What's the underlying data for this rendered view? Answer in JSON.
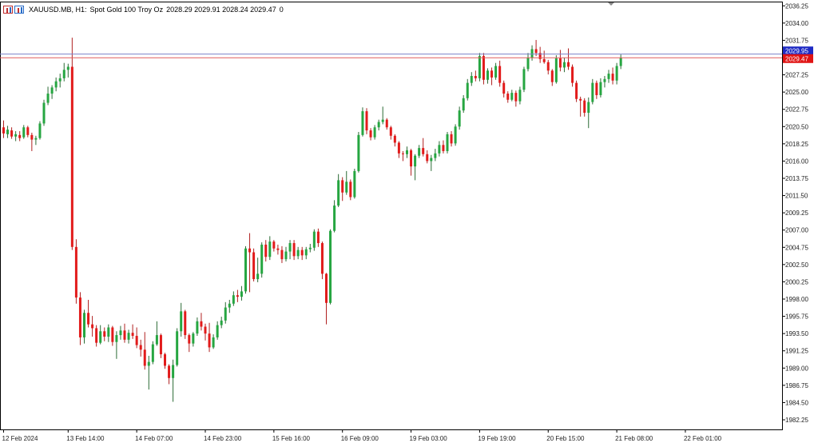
{
  "header": {
    "symbol": "XAUUSD.MB, H1:",
    "description": "Spot Gold 100 Troy Oz",
    "ohlc": "2028.29 2029.91 2028.24 2029.47",
    "volume": "0"
  },
  "price_labels": {
    "ask": "2029.95",
    "bid": "2029.47"
  },
  "colors": {
    "bull": "#26a641",
    "bear": "#e21b1b",
    "wick": "#3b3b3b",
    "ask_line": "#7b83c9",
    "bid_line": "#e05a5a",
    "bid_tag_bg": "#e01414",
    "ask_tag_bg": "#1f2bc4"
  },
  "chart_data": {
    "type": "candlestick",
    "symbol": "XAUUSD.MB",
    "timeframe": "H1",
    "ylim": [
      1981.0,
      2036.8
    ],
    "y_ticks": [
      "2036.25",
      "2034.00",
      "2031.75",
      "2029.50",
      "2027.25",
      "2025.00",
      "2022.75",
      "2020.50",
      "2018.25",
      "2016.00",
      "2013.75",
      "2011.50",
      "2009.25",
      "2007.00",
      "2004.75",
      "2002.50",
      "2000.25",
      "1998.00",
      "1995.75",
      "1993.50",
      "1991.25",
      "1989.00",
      "1986.75",
      "1984.50",
      "1982.25"
    ],
    "x_labels": [
      "12 Feb 2024",
      "13 Feb 14:00",
      "14 Feb 07:00",
      "14 Feb 23:00",
      "15 Feb 16:00",
      "16 Feb 09:00",
      "19 Feb 03:00",
      "19 Feb 19:00",
      "20 Feb 15:00",
      "21 Feb 08:00",
      "22 Feb 01:00"
    ],
    "x_label_bar_index": [
      0,
      16,
      33,
      50,
      67,
      84,
      101,
      118,
      135,
      152,
      169
    ],
    "grid": false,
    "candles": [
      {
        "o": 2020.4,
        "h": 2021.3,
        "l": 2019.0,
        "c": 2019.6
      },
      {
        "o": 2019.5,
        "h": 2020.6,
        "l": 2019.0,
        "c": 2020.1
      },
      {
        "o": 2020.0,
        "h": 2020.4,
        "l": 2018.9,
        "c": 2019.2
      },
      {
        "o": 2019.2,
        "h": 2019.9,
        "l": 2018.6,
        "c": 2019.5
      },
      {
        "o": 2019.4,
        "h": 2019.9,
        "l": 2018.6,
        "c": 2019.0
      },
      {
        "o": 2019.1,
        "h": 2020.7,
        "l": 2018.9,
        "c": 2020.4
      },
      {
        "o": 2020.4,
        "h": 2020.6,
        "l": 2019.1,
        "c": 2019.4
      },
      {
        "o": 2019.4,
        "h": 2019.7,
        "l": 2017.3,
        "c": 2018.8
      },
      {
        "o": 2018.8,
        "h": 2019.3,
        "l": 2018.1,
        "c": 2019.0
      },
      {
        "o": 2019.0,
        "h": 2021.2,
        "l": 2018.8,
        "c": 2020.9
      },
      {
        "o": 2020.9,
        "h": 2024.0,
        "l": 2020.6,
        "c": 2023.6
      },
      {
        "o": 2023.6,
        "h": 2025.7,
        "l": 2023.3,
        "c": 2024.8
      },
      {
        "o": 2024.8,
        "h": 2025.9,
        "l": 2024.1,
        "c": 2025.6
      },
      {
        "o": 2025.6,
        "h": 2026.9,
        "l": 2025.1,
        "c": 2026.4
      },
      {
        "o": 2026.4,
        "h": 2027.4,
        "l": 2025.6,
        "c": 2026.8
      },
      {
        "o": 2026.8,
        "h": 2028.8,
        "l": 2026.4,
        "c": 2027.9
      },
      {
        "o": 2027.9,
        "h": 2028.7,
        "l": 2026.9,
        "c": 2028.3
      },
      {
        "o": 2028.3,
        "h": 2032.1,
        "l": 2004.4,
        "c": 2004.8
      },
      {
        "o": 2004.8,
        "h": 2005.8,
        "l": 1997.4,
        "c": 1998.2
      },
      {
        "o": 1998.2,
        "h": 1998.9,
        "l": 1992.0,
        "c": 1993.0
      },
      {
        "o": 1993.0,
        "h": 1996.6,
        "l": 1992.2,
        "c": 1996.2
      },
      {
        "o": 1996.2,
        "h": 1997.9,
        "l": 1994.3,
        "c": 1994.7
      },
      {
        "o": 1994.7,
        "h": 1995.8,
        "l": 1993.1,
        "c": 1994.2
      },
      {
        "o": 1994.2,
        "h": 1994.6,
        "l": 1991.8,
        "c": 1992.3
      },
      {
        "o": 1992.3,
        "h": 1994.6,
        "l": 1992.1,
        "c": 1993.8
      },
      {
        "o": 1993.8,
        "h": 1994.3,
        "l": 1992.5,
        "c": 1993.1
      },
      {
        "o": 1993.1,
        "h": 1994.7,
        "l": 1992.4,
        "c": 1994.3
      },
      {
        "o": 1994.3,
        "h": 1994.5,
        "l": 1991.9,
        "c": 1992.4
      },
      {
        "o": 1992.4,
        "h": 1993.8,
        "l": 1990.2,
        "c": 1993.3
      },
      {
        "o": 1993.3,
        "h": 1994.5,
        "l": 1992.7,
        "c": 1993.9
      },
      {
        "o": 1993.9,
        "h": 1994.8,
        "l": 1992.3,
        "c": 1992.7
      },
      {
        "o": 1992.7,
        "h": 1994.0,
        "l": 1992.2,
        "c": 1993.6
      },
      {
        "o": 1993.6,
        "h": 1994.7,
        "l": 1992.8,
        "c": 1993.2
      },
      {
        "o": 1993.2,
        "h": 1994.3,
        "l": 1991.6,
        "c": 1992.0
      },
      {
        "o": 1992.0,
        "h": 1992.7,
        "l": 1990.5,
        "c": 1991.4
      },
      {
        "o": 1991.4,
        "h": 1993.7,
        "l": 1988.8,
        "c": 1989.3
      },
      {
        "o": 1989.3,
        "h": 1990.6,
        "l": 1986.2,
        "c": 1989.8
      },
      {
        "o": 1989.8,
        "h": 1992.5,
        "l": 1989.5,
        "c": 1992.1
      },
      {
        "o": 1992.1,
        "h": 1995.1,
        "l": 1991.9,
        "c": 1993.3
      },
      {
        "o": 1993.3,
        "h": 1993.5,
        "l": 1990.3,
        "c": 1990.8
      },
      {
        "o": 1990.8,
        "h": 1991.0,
        "l": 1988.9,
        "c": 1989.3
      },
      {
        "o": 1989.3,
        "h": 1989.5,
        "l": 1986.9,
        "c": 1987.7
      },
      {
        "o": 1987.7,
        "h": 1990.1,
        "l": 1984.6,
        "c": 1989.4
      },
      {
        "o": 1989.4,
        "h": 1994.2,
        "l": 1989.2,
        "c": 1993.8
      },
      {
        "o": 1993.8,
        "h": 1997.5,
        "l": 1993.1,
        "c": 1996.4
      },
      {
        "o": 1996.4,
        "h": 1996.6,
        "l": 1992.8,
        "c": 1993.3
      },
      {
        "o": 1993.3,
        "h": 1993.5,
        "l": 1991.1,
        "c": 1992.2
      },
      {
        "o": 1992.2,
        "h": 1993.7,
        "l": 1991.8,
        "c": 1993.5
      },
      {
        "o": 1993.5,
        "h": 1995.6,
        "l": 1993.2,
        "c": 1995.1
      },
      {
        "o": 1995.1,
        "h": 1996.2,
        "l": 1993.9,
        "c": 1994.4
      },
      {
        "o": 1994.4,
        "h": 1994.8,
        "l": 1992.6,
        "c": 1993.5
      },
      {
        "o": 1993.5,
        "h": 1994.9,
        "l": 1991.1,
        "c": 1991.7
      },
      {
        "o": 1991.7,
        "h": 1993.4,
        "l": 1991.5,
        "c": 1993.0
      },
      {
        "o": 1993.0,
        "h": 1995.1,
        "l": 1992.7,
        "c": 1994.6
      },
      {
        "o": 1994.6,
        "h": 1995.7,
        "l": 1994.2,
        "c": 1995.2
      },
      {
        "o": 1995.2,
        "h": 1997.6,
        "l": 1994.8,
        "c": 1996.9
      },
      {
        "o": 1996.9,
        "h": 1997.9,
        "l": 1996.2,
        "c": 1997.4
      },
      {
        "o": 1997.4,
        "h": 1999.0,
        "l": 1997.1,
        "c": 1998.5
      },
      {
        "o": 1998.5,
        "h": 1999.2,
        "l": 1997.6,
        "c": 1998.3
      },
      {
        "o": 1998.3,
        "h": 1999.7,
        "l": 1997.8,
        "c": 1999.0
      },
      {
        "o": 1999.0,
        "h": 2004.9,
        "l": 1998.7,
        "c": 2004.6
      },
      {
        "o": 2004.6,
        "h": 2006.6,
        "l": 1998.9,
        "c": 2004.1
      },
      {
        "o": 2004.1,
        "h": 2004.6,
        "l": 2000.3,
        "c": 2000.6
      },
      {
        "o": 2000.6,
        "h": 2003.4,
        "l": 2000.2,
        "c": 2001.3
      },
      {
        "o": 2001.3,
        "h": 2005.4,
        "l": 2000.8,
        "c": 2005.1
      },
      {
        "o": 2005.1,
        "h": 2005.7,
        "l": 2002.9,
        "c": 2003.5
      },
      {
        "o": 2003.5,
        "h": 2006.2,
        "l": 2003.1,
        "c": 2005.5
      },
      {
        "o": 2005.5,
        "h": 2005.7,
        "l": 2004.2,
        "c": 2004.6
      },
      {
        "o": 2004.6,
        "h": 2005.1,
        "l": 2003.8,
        "c": 2004.4
      },
      {
        "o": 2004.4,
        "h": 2004.9,
        "l": 2002.7,
        "c": 2003.2
      },
      {
        "o": 2003.2,
        "h": 2004.8,
        "l": 2002.9,
        "c": 2004.2
      },
      {
        "o": 2004.2,
        "h": 2005.7,
        "l": 2003.2,
        "c": 2005.3
      },
      {
        "o": 2005.3,
        "h": 2005.7,
        "l": 2003.1,
        "c": 2003.6
      },
      {
        "o": 2003.6,
        "h": 2004.8,
        "l": 2003.2,
        "c": 2004.4
      },
      {
        "o": 2004.4,
        "h": 2004.8,
        "l": 2003.1,
        "c": 2003.7
      },
      {
        "o": 2003.7,
        "h": 2004.8,
        "l": 2003.2,
        "c": 2004.5
      },
      {
        "o": 2004.5,
        "h": 2005.2,
        "l": 2004.1,
        "c": 2004.7
      },
      {
        "o": 2004.7,
        "h": 2007.1,
        "l": 2004.3,
        "c": 2006.8
      },
      {
        "o": 2006.8,
        "h": 2007.2,
        "l": 2004.8,
        "c": 2005.3
      },
      {
        "o": 2005.3,
        "h": 2005.5,
        "l": 2000.6,
        "c": 2001.3
      },
      {
        "o": 2001.3,
        "h": 2001.4,
        "l": 1994.7,
        "c": 1997.5
      },
      {
        "o": 1997.5,
        "h": 2007.1,
        "l": 1997.3,
        "c": 2006.9
      },
      {
        "o": 2006.9,
        "h": 2010.9,
        "l": 2006.7,
        "c": 2010.2
      },
      {
        "o": 2010.2,
        "h": 2014.3,
        "l": 2010.0,
        "c": 2013.5
      },
      {
        "o": 2013.5,
        "h": 2013.9,
        "l": 2010.8,
        "c": 2011.9
      },
      {
        "o": 2011.9,
        "h": 2014.7,
        "l": 2011.6,
        "c": 2013.3
      },
      {
        "o": 2013.3,
        "h": 2013.6,
        "l": 2010.9,
        "c": 2011.3
      },
      {
        "o": 2011.3,
        "h": 2015.0,
        "l": 2011.1,
        "c": 2014.7
      },
      {
        "o": 2014.7,
        "h": 2019.8,
        "l": 2014.5,
        "c": 2019.4
      },
      {
        "o": 2019.4,
        "h": 2023.0,
        "l": 2019.2,
        "c": 2022.5
      },
      {
        "o": 2022.5,
        "h": 2022.9,
        "l": 2019.5,
        "c": 2020.0
      },
      {
        "o": 2020.0,
        "h": 2020.3,
        "l": 2018.7,
        "c": 2019.1
      },
      {
        "o": 2019.1,
        "h": 2020.7,
        "l": 2018.8,
        "c": 2020.4
      },
      {
        "o": 2020.4,
        "h": 2021.4,
        "l": 2020.0,
        "c": 2021.1
      },
      {
        "o": 2021.1,
        "h": 2023.1,
        "l": 2020.8,
        "c": 2021.4
      },
      {
        "o": 2021.4,
        "h": 2021.6,
        "l": 2020.1,
        "c": 2020.4
      },
      {
        "o": 2020.4,
        "h": 2020.6,
        "l": 2018.8,
        "c": 2019.3
      },
      {
        "o": 2019.3,
        "h": 2019.5,
        "l": 2017.9,
        "c": 2018.4
      },
      {
        "o": 2018.4,
        "h": 2018.6,
        "l": 2016.4,
        "c": 2017.0
      },
      {
        "o": 2017.0,
        "h": 2017.3,
        "l": 2016.0,
        "c": 2016.9
      },
      {
        "o": 2016.9,
        "h": 2017.9,
        "l": 2016.4,
        "c": 2017.4
      },
      {
        "o": 2017.4,
        "h": 2017.6,
        "l": 2014.1,
        "c": 2015.3
      },
      {
        "o": 2015.3,
        "h": 2016.9,
        "l": 2013.5,
        "c": 2016.7
      },
      {
        "o": 2016.7,
        "h": 2018.1,
        "l": 2016.4,
        "c": 2017.7
      },
      {
        "o": 2017.7,
        "h": 2019.0,
        "l": 2016.6,
        "c": 2016.9
      },
      {
        "o": 2016.9,
        "h": 2017.4,
        "l": 2015.7,
        "c": 2016.0
      },
      {
        "o": 2016.0,
        "h": 2016.8,
        "l": 2014.7,
        "c": 2016.4
      },
      {
        "o": 2016.4,
        "h": 2017.6,
        "l": 2016.0,
        "c": 2017.0
      },
      {
        "o": 2017.0,
        "h": 2018.6,
        "l": 2016.6,
        "c": 2018.1
      },
      {
        "o": 2018.1,
        "h": 2018.7,
        "l": 2017.0,
        "c": 2017.3
      },
      {
        "o": 2017.3,
        "h": 2019.8,
        "l": 2017.0,
        "c": 2019.5
      },
      {
        "o": 2019.5,
        "h": 2019.9,
        "l": 2017.9,
        "c": 2018.3
      },
      {
        "o": 2018.3,
        "h": 2020.8,
        "l": 2018.0,
        "c": 2020.5
      },
      {
        "o": 2020.5,
        "h": 2023.1,
        "l": 2020.1,
        "c": 2022.6
      },
      {
        "o": 2022.6,
        "h": 2024.6,
        "l": 2022.3,
        "c": 2024.2
      },
      {
        "o": 2024.2,
        "h": 2026.7,
        "l": 2023.9,
        "c": 2026.2
      },
      {
        "o": 2026.2,
        "h": 2027.6,
        "l": 2025.8,
        "c": 2027.1
      },
      {
        "o": 2027.1,
        "h": 2027.8,
        "l": 2026.4,
        "c": 2026.8
      },
      {
        "o": 2026.8,
        "h": 2030.1,
        "l": 2026.4,
        "c": 2029.7
      },
      {
        "o": 2029.7,
        "h": 2030.1,
        "l": 2026.0,
        "c": 2026.6
      },
      {
        "o": 2026.6,
        "h": 2028.1,
        "l": 2026.1,
        "c": 2027.8
      },
      {
        "o": 2027.8,
        "h": 2028.2,
        "l": 2025.9,
        "c": 2026.9
      },
      {
        "o": 2026.9,
        "h": 2028.8,
        "l": 2026.6,
        "c": 2028.4
      },
      {
        "o": 2028.4,
        "h": 2029.1,
        "l": 2025.7,
        "c": 2026.2
      },
      {
        "o": 2026.2,
        "h": 2026.5,
        "l": 2024.3,
        "c": 2024.8
      },
      {
        "o": 2024.8,
        "h": 2025.1,
        "l": 2023.6,
        "c": 2024.0
      },
      {
        "o": 2024.0,
        "h": 2025.3,
        "l": 2023.8,
        "c": 2024.9
      },
      {
        "o": 2024.9,
        "h": 2025.2,
        "l": 2023.1,
        "c": 2023.8
      },
      {
        "o": 2023.8,
        "h": 2025.7,
        "l": 2023.4,
        "c": 2025.3
      },
      {
        "o": 2025.3,
        "h": 2028.3,
        "l": 2025.0,
        "c": 2028.0
      },
      {
        "o": 2028.0,
        "h": 2030.1,
        "l": 2027.7,
        "c": 2029.5
      },
      {
        "o": 2029.5,
        "h": 2031.1,
        "l": 2029.1,
        "c": 2030.6
      },
      {
        "o": 2030.6,
        "h": 2031.8,
        "l": 2029.7,
        "c": 2030.1
      },
      {
        "o": 2030.1,
        "h": 2030.9,
        "l": 2028.8,
        "c": 2029.3
      },
      {
        "o": 2029.3,
        "h": 2030.4,
        "l": 2028.7,
        "c": 2028.9
      },
      {
        "o": 2028.9,
        "h": 2029.2,
        "l": 2027.3,
        "c": 2027.8
      },
      {
        "o": 2027.8,
        "h": 2028.0,
        "l": 2025.8,
        "c": 2026.3
      },
      {
        "o": 2026.3,
        "h": 2029.8,
        "l": 2026.1,
        "c": 2029.4
      },
      {
        "o": 2029.4,
        "h": 2030.5,
        "l": 2027.7,
        "c": 2028.2
      },
      {
        "o": 2028.2,
        "h": 2029.5,
        "l": 2027.6,
        "c": 2028.9
      },
      {
        "o": 2028.9,
        "h": 2030.7,
        "l": 2027.9,
        "c": 2028.3
      },
      {
        "o": 2028.3,
        "h": 2028.6,
        "l": 2025.7,
        "c": 2026.2
      },
      {
        "o": 2026.2,
        "h": 2026.5,
        "l": 2023.7,
        "c": 2024.1
      },
      {
        "o": 2024.1,
        "h": 2024.4,
        "l": 2021.8,
        "c": 2023.9
      },
      {
        "o": 2023.9,
        "h": 2024.2,
        "l": 2021.8,
        "c": 2022.3
      },
      {
        "o": 2022.3,
        "h": 2024.3,
        "l": 2020.3,
        "c": 2023.7
      },
      {
        "o": 2023.7,
        "h": 2026.7,
        "l": 2023.4,
        "c": 2026.2
      },
      {
        "o": 2026.2,
        "h": 2026.5,
        "l": 2024.1,
        "c": 2024.6
      },
      {
        "o": 2024.6,
        "h": 2026.8,
        "l": 2024.3,
        "c": 2026.3
      },
      {
        "o": 2026.3,
        "h": 2027.1,
        "l": 2025.6,
        "c": 2026.7
      },
      {
        "o": 2026.7,
        "h": 2027.9,
        "l": 2026.2,
        "c": 2027.4
      },
      {
        "o": 2027.4,
        "h": 2028.2,
        "l": 2026.0,
        "c": 2026.5
      },
      {
        "o": 2026.5,
        "h": 2028.8,
        "l": 2026.0,
        "c": 2028.4
      },
      {
        "o": 2028.4,
        "h": 2029.9,
        "l": 2028.0,
        "c": 2029.5
      }
    ]
  }
}
